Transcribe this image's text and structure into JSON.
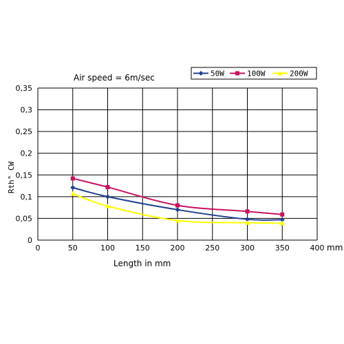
{
  "chart_data": {
    "type": "line",
    "title": "Air speed = 6m/sec",
    "xlabel": "Length in mm",
    "xunit": "mm",
    "ylabel": "Rth° CW",
    "xlim": [
      0,
      400
    ],
    "ylim": [
      0,
      0.35
    ],
    "x_ticks": [
      "0",
      "50",
      "100",
      "150",
      "200",
      "250",
      "300",
      "350",
      "400"
    ],
    "y_ticks": [
      "0",
      "0,05",
      "0,1",
      "0,15",
      "0,2",
      "0,25",
      "0,3",
      "0,35"
    ],
    "grid": true,
    "legend_position": "top-right",
    "x": [
      50,
      100,
      200,
      300,
      350
    ],
    "series": [
      {
        "name": "50W",
        "color": "#1f3f8f",
        "marker": "diamond",
        "values": [
          0.121,
          0.1,
          0.07,
          0.048,
          0.047
        ]
      },
      {
        "name": "100W",
        "color": "#c8105f",
        "marker": "square",
        "values": [
          0.142,
          0.122,
          0.08,
          0.066,
          0.059
        ]
      },
      {
        "name": "200W",
        "color": "#ffff00",
        "marker": "triangle",
        "values": [
          0.107,
          0.078,
          0.045,
          0.04,
          0.039
        ]
      }
    ]
  }
}
